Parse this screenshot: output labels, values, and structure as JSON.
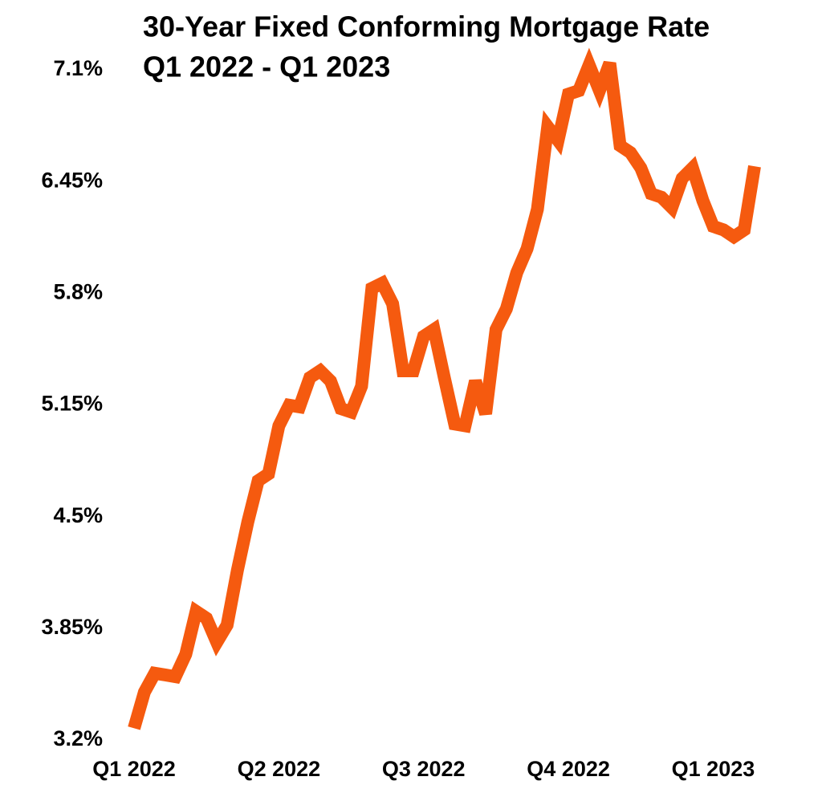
{
  "chart_data": {
    "type": "line",
    "title": "30-Year Fixed Conforming Mortgage Rate",
    "subtitle": "Q1 2022 - Q1 2023",
    "color": "#f55a0f",
    "grid": false,
    "xlim": [
      0,
      60
    ],
    "xticks": [
      {
        "value": 0,
        "label": "Q1 2022"
      },
      {
        "value": 14,
        "label": "Q2 2022"
      },
      {
        "value": 28,
        "label": "Q3 2022"
      },
      {
        "value": 42,
        "label": "Q4 2022"
      },
      {
        "value": 56,
        "label": "Q1 2023"
      }
    ],
    "ylim": [
      3.2,
      7.1
    ],
    "yticks": [
      {
        "value": 3.2,
        "label": "3.2%"
      },
      {
        "value": 3.85,
        "label": "3.85%"
      },
      {
        "value": 4.5,
        "label": "4.5%"
      },
      {
        "value": 5.15,
        "label": "5.15%"
      },
      {
        "value": 5.8,
        "label": "5.8%"
      },
      {
        "value": 6.45,
        "label": "6.45%"
      },
      {
        "value": 7.1,
        "label": "7.1%"
      }
    ],
    "values": [
      3.25,
      3.46,
      3.57,
      3.56,
      3.55,
      3.68,
      3.93,
      3.89,
      3.75,
      3.85,
      4.17,
      4.45,
      4.69,
      4.73,
      5.01,
      5.13,
      5.12,
      5.29,
      5.33,
      5.27,
      5.11,
      5.09,
      5.24,
      5.81,
      5.84,
      5.72,
      5.33,
      5.33,
      5.53,
      5.57,
      5.29,
      5.02,
      5.01,
      5.27,
      5.08,
      5.57,
      5.69,
      5.9,
      6.04,
      6.27,
      6.75,
      6.67,
      6.94,
      6.96,
      7.11,
      6.96,
      7.12,
      6.64,
      6.6,
      6.51,
      6.36,
      6.34,
      6.28,
      6.45,
      6.51,
      6.32,
      6.17,
      6.15,
      6.11,
      6.15,
      6.52
    ]
  }
}
